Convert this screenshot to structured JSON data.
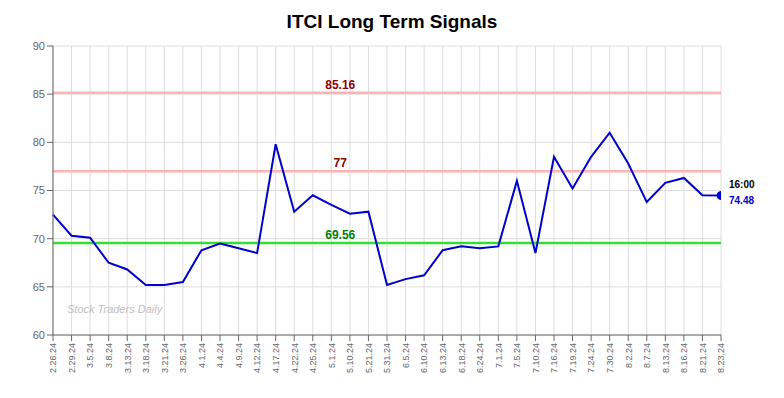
{
  "chart_data": {
    "type": "line",
    "title": "ITCI Long Term Signals",
    "categories": [
      "2.26.24",
      "2.29.24",
      "3.5.24",
      "3.8.24",
      "3.13.24",
      "3.18.24",
      "3.21.24",
      "3.26.24",
      "4.1.24",
      "4.4.24",
      "4.9.24",
      "4.12.24",
      "4.17.24",
      "4.22.24",
      "4.25.24",
      "5.1.24",
      "5.10.24",
      "5.21.24",
      "5.31.24",
      "6.5.24",
      "6.10.24",
      "6.13.24",
      "6.18.24",
      "6.24.24",
      "7.1.24",
      "7.5.24",
      "7.10.24",
      "7.16.24",
      "7.19.24",
      "7.24.24",
      "7.30.24",
      "8.2.24",
      "8.7.24",
      "8.13.24",
      "8.16.24",
      "8.21.24",
      "8.23.24"
    ],
    "values": [
      72.5,
      70.3,
      70.1,
      67.5,
      66.8,
      65.2,
      65.2,
      65.5,
      68.8,
      69.5,
      69.0,
      68.5,
      79.8,
      72.8,
      74.5,
      73.5,
      72.6,
      72.8,
      65.2,
      65.8,
      66.2,
      68.8,
      69.2,
      69.0,
      69.2,
      76.0,
      68.5,
      78.5,
      75.2,
      78.5,
      81.0,
      77.8,
      73.8,
      75.8,
      76.3,
      74.5,
      74.48
    ],
    "color": "#0000cc",
    "ylim": [
      60,
      90
    ],
    "yticks": [
      60,
      65,
      70,
      75,
      80,
      85,
      90
    ],
    "grid": true,
    "hlines": [
      {
        "value": 85.16,
        "color": "#ffb3b3",
        "label_color": "#8b0000"
      },
      {
        "value": 77,
        "color": "#ffb3b3",
        "label_color": "#8b0000"
      },
      {
        "value": 69.56,
        "color": "#33dd33",
        "label_color": "#008000"
      }
    ],
    "watermark": "Stock Traders Daily",
    "end_label": "16:00",
    "end_value": 74.48
  }
}
